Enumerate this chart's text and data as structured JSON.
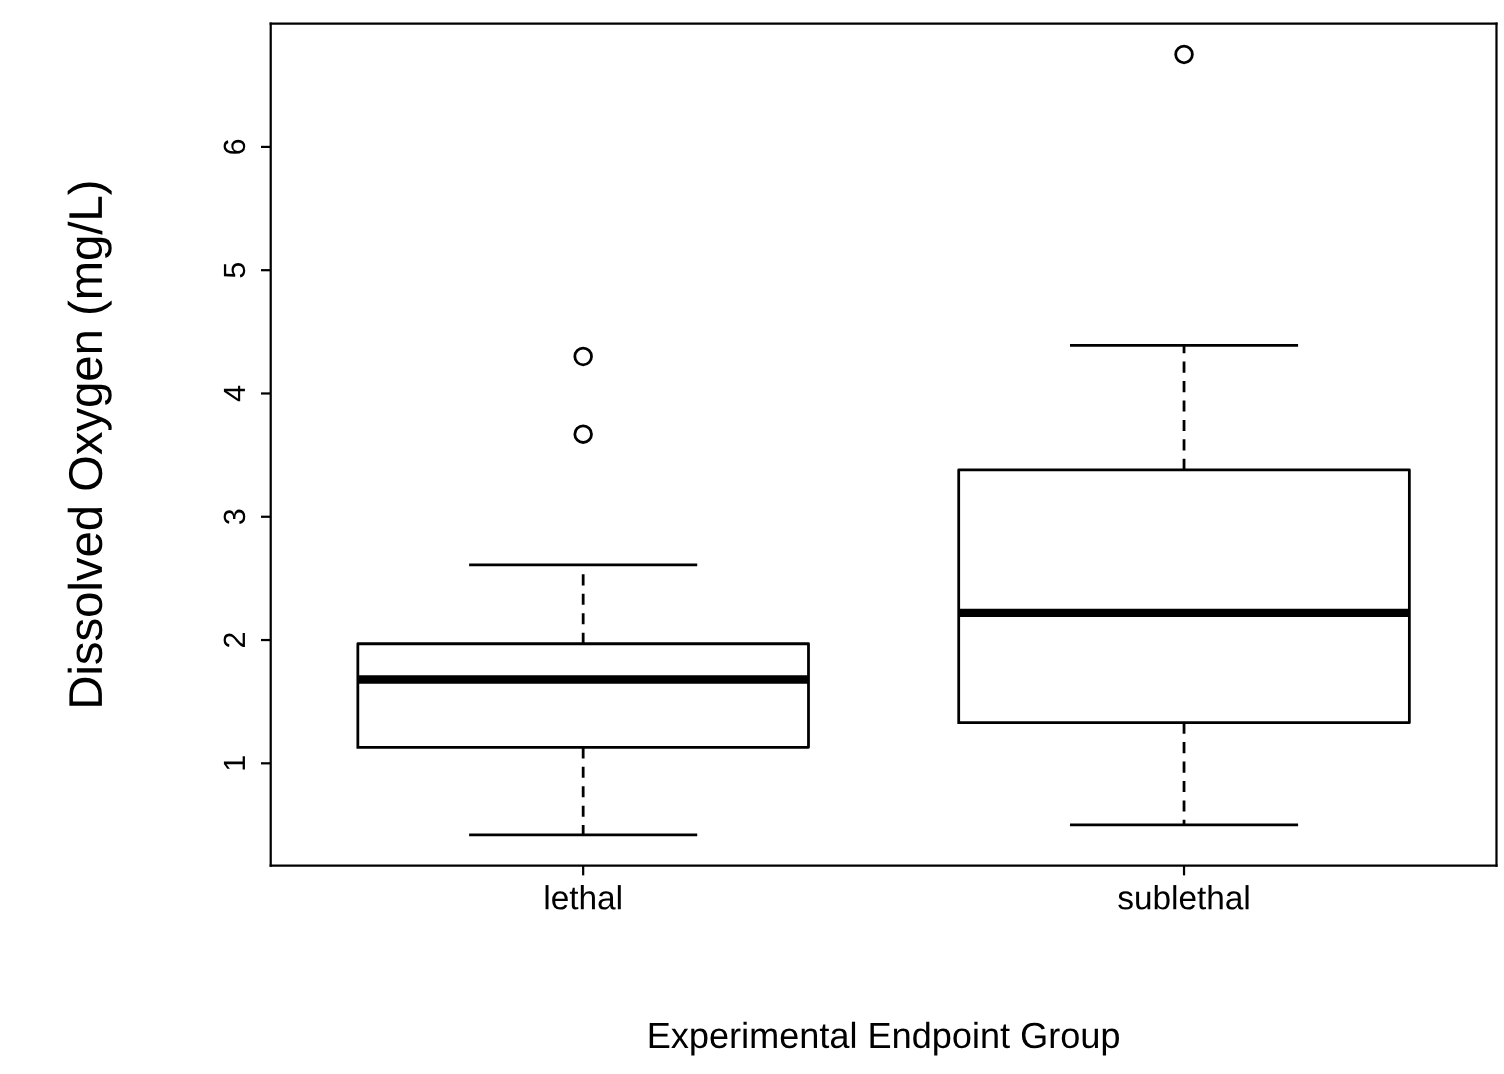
{
  "chart_data": {
    "type": "box",
    "xlabel": "Experimental Endpoint Group",
    "ylabel": "Dissolved Oxygen (mg/L)",
    "categories": [
      "lethal",
      "sublethal"
    ],
    "boxes": [
      {
        "low": 0.42,
        "q1": 1.13,
        "median": 1.68,
        "q3": 1.97,
        "high": 2.61,
        "outliers": [
          3.67,
          4.3
        ]
      },
      {
        "low": 0.5,
        "q1": 1.33,
        "median": 2.22,
        "q3": 3.38,
        "high": 4.39,
        "outliers": [
          6.75
        ]
      }
    ],
    "ylim": [
      0.17,
      7.0
    ],
    "yticks": [
      1,
      2,
      3,
      4,
      5,
      6
    ],
    "grid": false,
    "legend": false
  }
}
